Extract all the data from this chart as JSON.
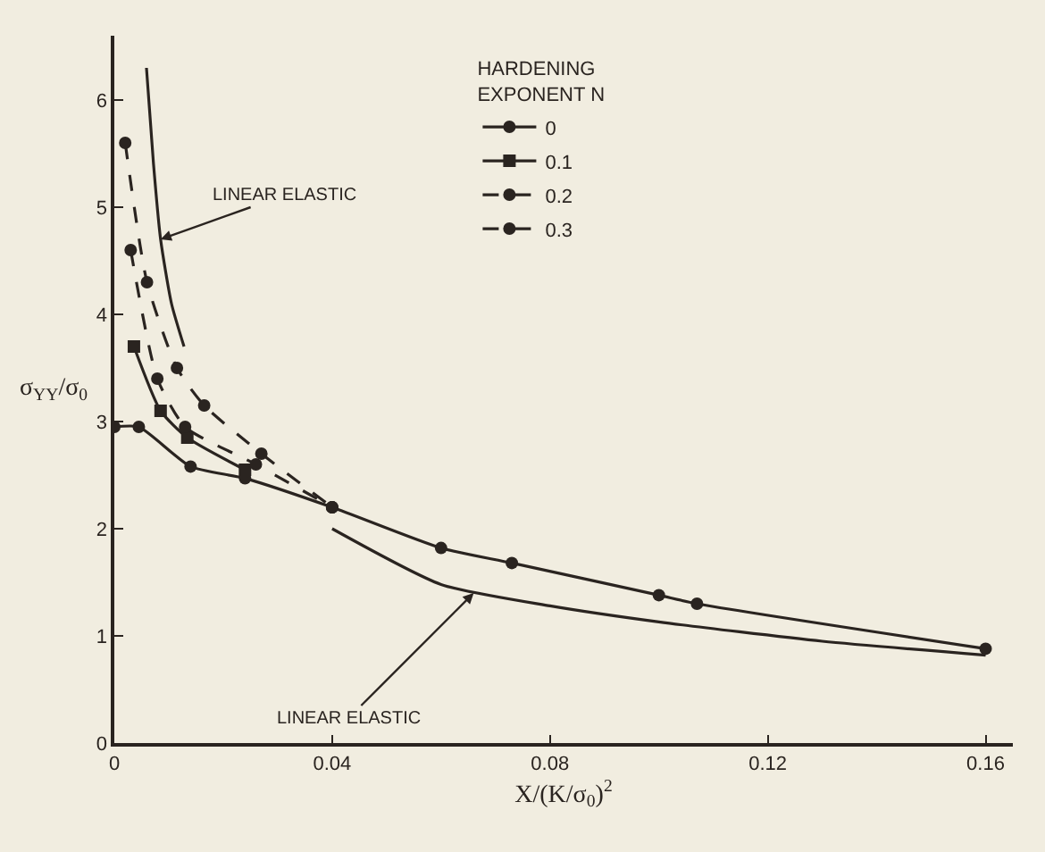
{
  "chart_data": {
    "type": "line",
    "xlabel": "X/(K/σ$_{0}$)$^{2}$",
    "ylabel": "σ$_{YY}$/σ$_{0}$",
    "legend_title": "HARDENING EXPONENT N",
    "legend": "top",
    "grid": false,
    "xlim": [
      0,
      0.165
    ],
    "ylim": [
      0,
      6.6
    ],
    "xticks": [
      0,
      0.04,
      0.08,
      0.12,
      0.16
    ],
    "yticks": [
      0,
      1,
      2,
      3,
      4,
      5,
      6
    ],
    "series": [
      {
        "name": "0",
        "color": "#2a2420",
        "marker": "circle",
        "line_style": "solid",
        "x": [
          0,
          0.0045,
          0.014,
          0.024,
          0.04,
          0.06,
          0.073,
          0.1,
          0.107,
          0.16
        ],
        "values": [
          2.95,
          2.95,
          2.58,
          2.47,
          2.2,
          1.82,
          1.68,
          1.38,
          1.3,
          0.88
        ]
      },
      {
        "name": "0.1",
        "color": "#2a2420",
        "marker": "square",
        "line_style": "solid",
        "x": [
          0.0036,
          0.0085,
          0.0134,
          0.024
        ],
        "values": [
          3.7,
          3.1,
          2.85,
          2.55
        ]
      },
      {
        "name": "0.2",
        "color": "#2a2420",
        "marker": "circle",
        "line_style": "dashed",
        "x": [
          0.003,
          0.0079,
          0.013,
          0.026,
          0.04
        ],
        "values": [
          4.6,
          3.4,
          2.95,
          2.6,
          2.2
        ]
      },
      {
        "name": "0.3",
        "color": "#2a2420",
        "marker": "circle",
        "line_style": "dashed",
        "x": [
          0.002,
          0.006,
          0.0115,
          0.0165,
          0.027,
          0.04
        ],
        "values": [
          5.6,
          4.3,
          3.5,
          3.15,
          2.7,
          2.2
        ]
      },
      {
        "color": "#2a2420",
        "marker": "none",
        "line_style": "solid",
        "x": [
          0.0059,
          0.0072,
          0.0085,
          0.0105,
          0.0128
        ],
        "values": [
          6.3,
          5.4,
          4.7,
          4.1,
          3.7
        ]
      },
      {
        "color": "#2a2420",
        "marker": "none",
        "line_style": "solid",
        "x": [
          0.04,
          0.06,
          0.08,
          0.1,
          0.13,
          0.16
        ],
        "values": [
          2.0,
          1.48,
          1.28,
          1.13,
          0.95,
          0.82
        ]
      }
    ],
    "annotations": [
      {
        "text": "LINEAR ELASTIC",
        "x": 0.0085,
        "y": 4.7
      },
      {
        "text": "LINEAR ELASTIC",
        "x": 0.066,
        "y": 1.4
      }
    ]
  }
}
